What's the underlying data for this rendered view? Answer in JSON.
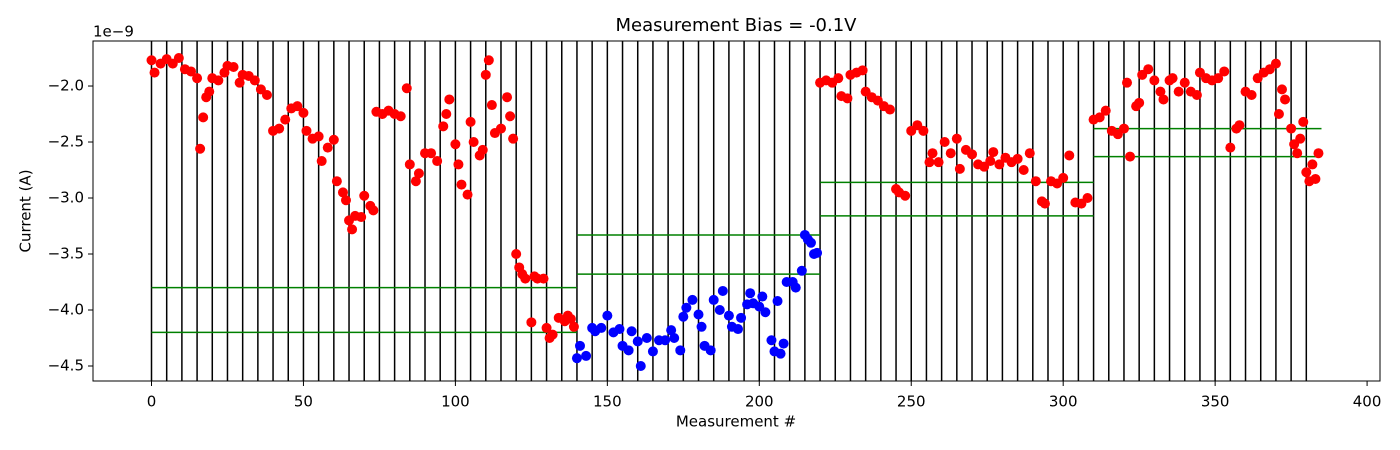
{
  "chart_data": {
    "type": "scatter",
    "title": "Measurement Bias = -0.1V",
    "xlabel": "Measurement #",
    "ylabel": "Current (A)",
    "offset_label": "1e−9",
    "xlim": [
      -19.25,
      404.25
    ],
    "ylim": [
      -4.634,
      -1.598
    ],
    "xticks": [
      0,
      50,
      100,
      150,
      200,
      250,
      300,
      350,
      400
    ],
    "yticks": [
      {
        "value": -4.5,
        "label": "−4.5"
      },
      {
        "value": -4.0,
        "label": "−4.0"
      },
      {
        "value": -3.5,
        "label": "−3.5"
      },
      {
        "value": -3.0,
        "label": "−3.0"
      },
      {
        "value": -2.5,
        "label": "−2.5"
      },
      {
        "value": -2.0,
        "label": "−2.0"
      }
    ],
    "vlines": {
      "color": "#000000",
      "x": [
        0,
        5,
        10,
        15,
        20,
        25,
        30,
        35,
        40,
        45,
        50,
        55,
        60,
        65,
        70,
        75,
        80,
        85,
        90,
        95,
        100,
        105,
        110,
        115,
        120,
        125,
        130,
        135,
        140,
        145,
        150,
        155,
        160,
        165,
        170,
        175,
        180,
        185,
        190,
        195,
        200,
        205,
        210,
        215,
        220,
        225,
        230,
        235,
        240,
        245,
        250,
        255,
        260,
        265,
        270,
        275,
        280,
        285,
        290,
        295,
        300,
        305,
        310,
        315,
        320,
        325,
        330,
        335,
        340,
        345,
        350,
        355,
        360,
        365,
        370,
        375,
        380
      ]
    },
    "hlines": {
      "color": "#008000",
      "segments": [
        {
          "y": -3.8,
          "xmin": 0,
          "xmax": 140
        },
        {
          "y": -4.2,
          "xmin": 0,
          "xmax": 140
        },
        {
          "y": -3.33,
          "xmin": 140,
          "xmax": 220
        },
        {
          "y": -3.68,
          "xmin": 140,
          "xmax": 220
        },
        {
          "y": -2.86,
          "xmin": 220,
          "xmax": 310
        },
        {
          "y": -3.16,
          "xmin": 220,
          "xmax": 310
        },
        {
          "y": -2.38,
          "xmin": 310,
          "xmax": 385
        },
        {
          "y": -2.63,
          "xmin": 310,
          "xmax": 385
        }
      ]
    },
    "series": [
      {
        "color": "#ff0000",
        "x": [
          0,
          1,
          3,
          5,
          7,
          9,
          11,
          13,
          15,
          16,
          17,
          18,
          19,
          20,
          22,
          24,
          25,
          27,
          29,
          30,
          32,
          34,
          36,
          38,
          40,
          42,
          44,
          46,
          48,
          50,
          51,
          53,
          55,
          56,
          58,
          60,
          61,
          63,
          64,
          65,
          66,
          67,
          69,
          70,
          72,
          73,
          74,
          76,
          78,
          80,
          82,
          84,
          85,
          87,
          88,
          90,
          92,
          94,
          96,
          97,
          98,
          100,
          101,
          102,
          104,
          105,
          106,
          108,
          109,
          110,
          111,
          112,
          113,
          115,
          117,
          118,
          119,
          120,
          121,
          122,
          123,
          125,
          126,
          127,
          129,
          130,
          131,
          132,
          134,
          136,
          137,
          138,
          139,
          220,
          222,
          224,
          226,
          227,
          229,
          230,
          232,
          234,
          235,
          237,
          239,
          241,
          243,
          245,
          246,
          248,
          250,
          252,
          254,
          256,
          257,
          259,
          261,
          263,
          265,
          266,
          268,
          270,
          272,
          274,
          276,
          277,
          279,
          281,
          283,
          285,
          287,
          289,
          291,
          293,
          294,
          296,
          298,
          300,
          302,
          304,
          306,
          308,
          310,
          312,
          314,
          316,
          318,
          320,
          321,
          322,
          324,
          325,
          326,
          328,
          330,
          332,
          333,
          335,
          336,
          338,
          340,
          342,
          344,
          345,
          347,
          349,
          351,
          353,
          355,
          357,
          358,
          360,
          362,
          364,
          366,
          368,
          370,
          371,
          372,
          373,
          375,
          376,
          377,
          378,
          379,
          380,
          381,
          382,
          383,
          384
        ],
        "values": [
          -1.77,
          -1.88,
          -1.8,
          -1.76,
          -1.8,
          -1.75,
          -1.85,
          -1.87,
          -1.93,
          -2.56,
          -2.28,
          -2.1,
          -2.05,
          -1.93,
          -1.95,
          -1.88,
          -1.82,
          -1.83,
          -1.97,
          -1.9,
          -1.91,
          -1.95,
          -2.03,
          -2.08,
          -2.4,
          -2.38,
          -2.3,
          -2.2,
          -2.18,
          -2.24,
          -2.4,
          -2.47,
          -2.45,
          -2.67,
          -2.55,
          -2.48,
          -2.85,
          -2.95,
          -3.02,
          -3.2,
          -3.28,
          -3.16,
          -3.17,
          -2.98,
          -3.07,
          -3.11,
          -2.23,
          -2.25,
          -2.22,
          -2.25,
          -2.27,
          -2.02,
          -2.7,
          -2.85,
          -2.78,
          -2.6,
          -2.6,
          -2.67,
          -2.36,
          -2.25,
          -2.12,
          -2.52,
          -2.7,
          -2.88,
          -2.97,
          -2.32,
          -2.5,
          -2.62,
          -2.57,
          -1.9,
          -1.77,
          -2.17,
          -2.42,
          -2.38,
          -2.1,
          -2.27,
          -2.47,
          -3.5,
          -3.62,
          -3.68,
          -3.72,
          -4.11,
          -3.7,
          -3.72,
          -3.72,
          -4.16,
          -4.25,
          -4.22,
          -4.07,
          -4.1,
          -4.05,
          -4.08,
          -4.15,
          -1.97,
          -1.95,
          -1.97,
          -1.93,
          -2.09,
          -2.11,
          -1.9,
          -1.88,
          -1.86,
          -2.05,
          -2.1,
          -2.13,
          -2.18,
          -2.21,
          -2.92,
          -2.95,
          -2.98,
          -2.4,
          -2.35,
          -2.4,
          -2.68,
          -2.6,
          -2.68,
          -2.5,
          -2.6,
          -2.47,
          -2.74,
          -2.57,
          -2.61,
          -2.7,
          -2.72,
          -2.67,
          -2.59,
          -2.7,
          -2.64,
          -2.68,
          -2.65,
          -2.75,
          -2.6,
          -2.85,
          -3.03,
          -3.05,
          -2.85,
          -2.87,
          -2.82,
          -2.62,
          -3.04,
          -3.05,
          -3.0,
          -2.3,
          -2.28,
          -2.22,
          -2.4,
          -2.43,
          -2.38,
          -1.97,
          -2.63,
          -2.18,
          -2.15,
          -1.9,
          -1.85,
          -1.95,
          -2.05,
          -2.12,
          -1.95,
          -1.93,
          -2.05,
          -1.97,
          -2.05,
          -2.08,
          -1.88,
          -1.93,
          -1.95,
          -1.93,
          -1.87,
          -2.55,
          -2.38,
          -2.35,
          -2.05,
          -2.08,
          -1.93,
          -1.88,
          -1.85,
          -1.8,
          -2.25,
          -2.03,
          -2.12,
          -2.38,
          -2.52,
          -2.6,
          -2.47,
          -2.32,
          -2.77,
          -2.85,
          -2.7,
          -2.83,
          -2.6
        ]
      },
      {
        "color": "#0000ff",
        "x": [
          140,
          141,
          143,
          145,
          146,
          148,
          150,
          152,
          154,
          155,
          157,
          158,
          160,
          161,
          163,
          165,
          167,
          169,
          171,
          172,
          174,
          175,
          176,
          178,
          180,
          181,
          182,
          184,
          185,
          187,
          188,
          190,
          191,
          193,
          194,
          196,
          197,
          198,
          200,
          201,
          202,
          204,
          205,
          206,
          207,
          208,
          209,
          211,
          212,
          214,
          215,
          216,
          217,
          218,
          219
        ],
        "values": [
          -4.43,
          -4.32,
          -4.41,
          -4.16,
          -4.19,
          -4.16,
          -4.05,
          -4.2,
          -4.17,
          -4.32,
          -4.36,
          -4.19,
          -4.28,
          -4.5,
          -4.25,
          -4.37,
          -4.27,
          -4.27,
          -4.18,
          -4.25,
          -4.36,
          -4.06,
          -3.98,
          -3.91,
          -4.04,
          -4.15,
          -4.32,
          -4.36,
          -3.91,
          -4.0,
          -3.83,
          -4.05,
          -4.15,
          -4.17,
          -4.07,
          -3.95,
          -3.85,
          -3.94,
          -3.97,
          -3.88,
          -4.02,
          -4.27,
          -4.37,
          -3.92,
          -4.39,
          -4.3,
          -3.75,
          -3.75,
          -3.8,
          -3.65,
          -3.33,
          -3.37,
          -3.4,
          -3.5,
          -3.49
        ]
      }
    ]
  }
}
